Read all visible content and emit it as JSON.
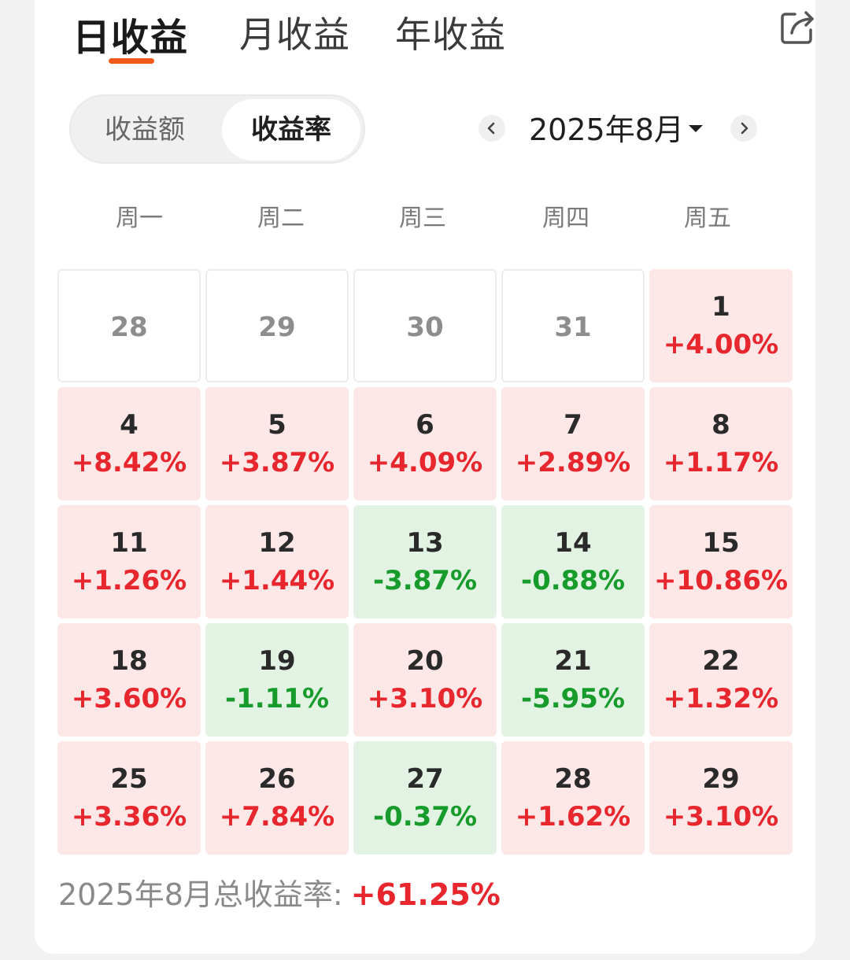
{
  "tabs": [
    {
      "label": "日收益",
      "active": true
    },
    {
      "label": "月收益",
      "active": false
    },
    {
      "label": "年收益",
      "active": false
    }
  ],
  "segment": {
    "options": [
      "收益额",
      "收益率"
    ],
    "selected": "收益率"
  },
  "month_nav": {
    "label": "2025年8月"
  },
  "weekdays": [
    "周一",
    "周二",
    "周三",
    "周四",
    "周五"
  ],
  "calendar": [
    {
      "day": "28",
      "rate": "",
      "state": "empty"
    },
    {
      "day": "29",
      "rate": "",
      "state": "empty"
    },
    {
      "day": "30",
      "rate": "",
      "state": "empty"
    },
    {
      "day": "31",
      "rate": "",
      "state": "empty"
    },
    {
      "day": "1",
      "rate": "+4.00%",
      "state": "up"
    },
    {
      "day": "4",
      "rate": "+8.42%",
      "state": "up"
    },
    {
      "day": "5",
      "rate": "+3.87%",
      "state": "up"
    },
    {
      "day": "6",
      "rate": "+4.09%",
      "state": "up"
    },
    {
      "day": "7",
      "rate": "+2.89%",
      "state": "up"
    },
    {
      "day": "8",
      "rate": "+1.17%",
      "state": "up"
    },
    {
      "day": "11",
      "rate": "+1.26%",
      "state": "up"
    },
    {
      "day": "12",
      "rate": "+1.44%",
      "state": "up"
    },
    {
      "day": "13",
      "rate": "-3.87%",
      "state": "down"
    },
    {
      "day": "14",
      "rate": "-0.88%",
      "state": "down"
    },
    {
      "day": "15",
      "rate": "+10.86%",
      "state": "up"
    },
    {
      "day": "18",
      "rate": "+3.60%",
      "state": "up"
    },
    {
      "day": "19",
      "rate": "-1.11%",
      "state": "down"
    },
    {
      "day": "20",
      "rate": "+3.10%",
      "state": "up"
    },
    {
      "day": "21",
      "rate": "-5.95%",
      "state": "down"
    },
    {
      "day": "22",
      "rate": "+1.32%",
      "state": "up"
    },
    {
      "day": "25",
      "rate": "+3.36%",
      "state": "up"
    },
    {
      "day": "26",
      "rate": "+7.84%",
      "state": "up"
    },
    {
      "day": "27",
      "rate": "-0.37%",
      "state": "down"
    },
    {
      "day": "28",
      "rate": "+1.62%",
      "state": "up"
    },
    {
      "day": "29",
      "rate": "+3.10%",
      "state": "up"
    }
  ],
  "footer": {
    "label": "2025年8月总收益率:",
    "value": "+61.25%"
  },
  "colors": {
    "accent": "#f25a1b",
    "up": "#e8262d",
    "down": "#179b2b",
    "up_bg": "#fde7e7",
    "down_bg": "#e2f3e3"
  },
  "icons": [
    "share-icon",
    "chevron-left-icon",
    "chevron-right-icon",
    "caret-down-icon"
  ]
}
